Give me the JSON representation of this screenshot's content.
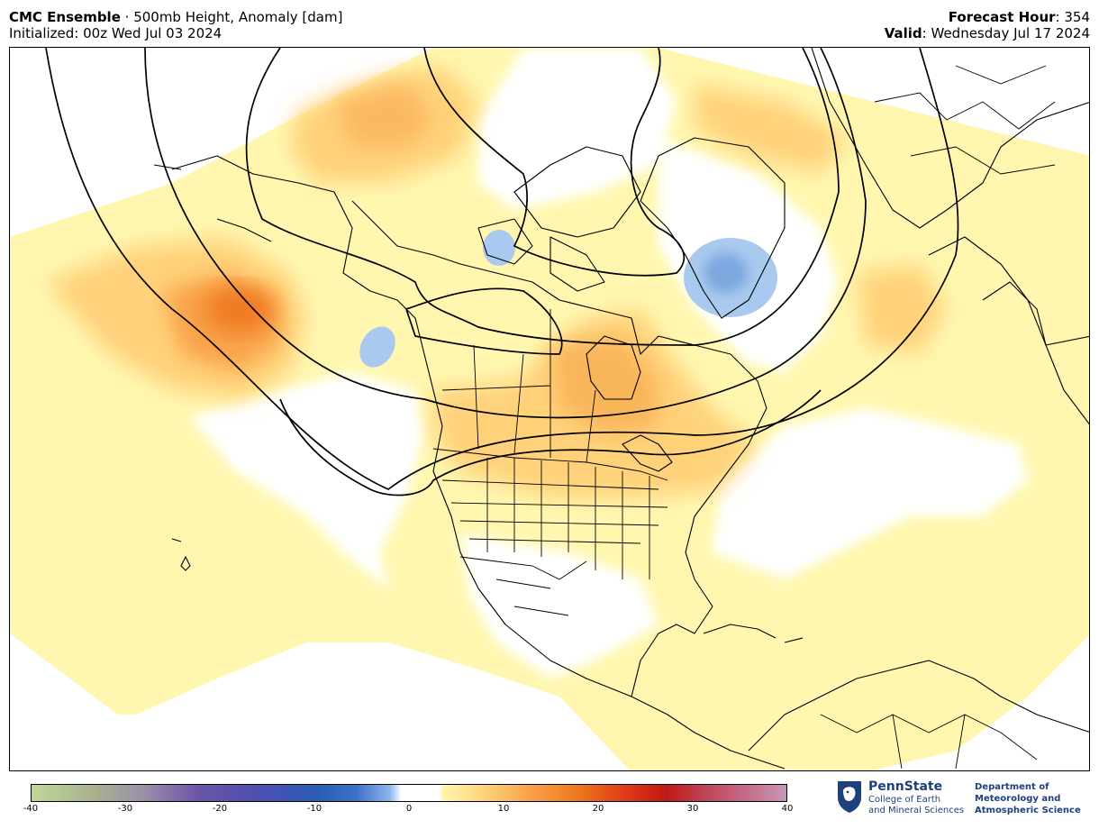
{
  "header": {
    "model": "CMC Ensemble",
    "sep": " · ",
    "product": "500mb Height, Anomaly [dam]",
    "initialized": "Initialized: 00z Wed Jul 03 2024",
    "forecast_hour_label": "Forecast Hour",
    "forecast_hour_value": ": 354",
    "valid_label": "Valid",
    "valid_value": ": Wednesday Jul 17 2024"
  },
  "colorbar": {
    "min": -40,
    "max": 40,
    "tick_labels": [
      "-40",
      "-30",
      "-20",
      "-10",
      "0",
      "10",
      "20",
      "30",
      "40"
    ],
    "tick_values": [
      -40,
      -30,
      -20,
      -10,
      0,
      10,
      20,
      30,
      40
    ]
  },
  "logo": {
    "university": "PennState",
    "college_line1": "College of Earth",
    "college_line2": "and Mineral Sciences",
    "dept_line1": "Department of",
    "dept_line2": "Meteorology and",
    "dept_line3": "Atmospheric Science"
  },
  "colors": {
    "pos_light": "#fff7b0",
    "pos_mid": "#ffd27a",
    "pos_strong": "#f9a24a",
    "pos_max": "#f07a20",
    "neg_light": "#a9c9ee",
    "neg_mid": "#7da8df",
    "psu_blue": "#1e407c"
  }
}
